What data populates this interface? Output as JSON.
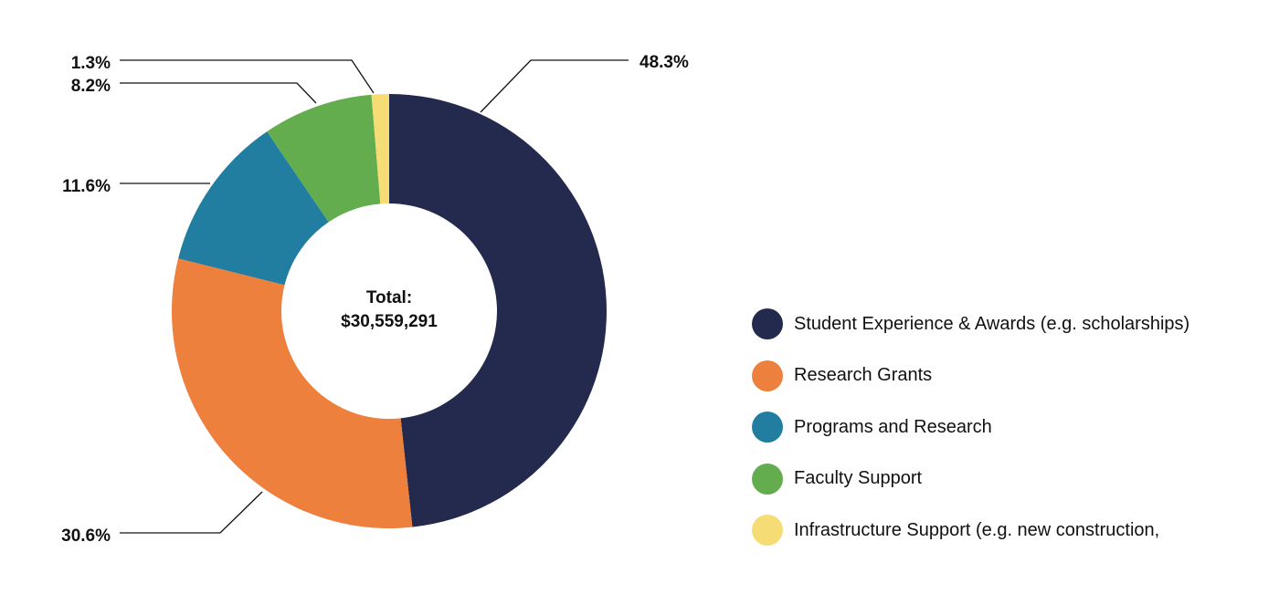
{
  "chart_data": {
    "type": "pie",
    "donut": true,
    "center_label": [
      "Total:",
      "$30,559,291"
    ],
    "slices": [
      {
        "label": "Student Experience & Awards (e.g. scholarships)",
        "value": 48.3,
        "value_label": "48.3%",
        "color": "#232a4e"
      },
      {
        "label": "Research Grants",
        "value": 30.6,
        "value_label": "30.6%",
        "color": "#ec803c"
      },
      {
        "label": "Programs and Research",
        "value": 11.6,
        "value_label": "11.6%",
        "color": "#217ea1"
      },
      {
        "label": "Faculty Support",
        "value": 8.2,
        "value_label": "8.2%",
        "color": "#63ad4f"
      },
      {
        "label": "Infrastructure Support (e.g. new construction,",
        "value": 1.3,
        "value_label": "1.3%",
        "color": "#f6dc74"
      }
    ],
    "legend_position": "right"
  }
}
